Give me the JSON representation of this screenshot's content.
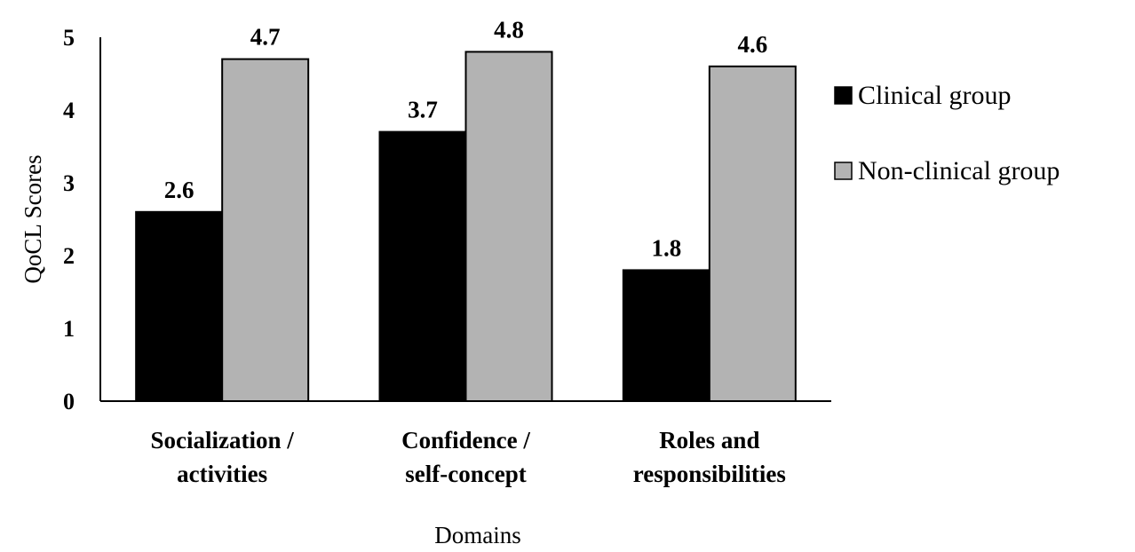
{
  "chart_data": {
    "type": "bar",
    "categories": [
      [
        "Socialization /",
        "activities"
      ],
      [
        "Confidence /",
        "self-concept"
      ],
      [
        "Roles and",
        "responsibilities"
      ]
    ],
    "series": [
      {
        "name": "Clinical group",
        "values": [
          2.6,
          3.7,
          1.8
        ],
        "labels": [
          "2.6",
          "3.7",
          "1.8"
        ],
        "color": "#000000"
      },
      {
        "name": "Non-clinical group",
        "values": [
          4.7,
          4.8,
          4.6
        ],
        "labels": [
          "4.7",
          "4.8",
          "4.6"
        ],
        "color": "#b3b3b3"
      }
    ],
    "yticks": [
      "0",
      "1",
      "2",
      "3",
      "4",
      "5"
    ],
    "ylim": [
      0,
      5
    ],
    "xlabel": "Domains",
    "ylabel": "QoCL Scores",
    "grid": false,
    "legend_position": "right"
  }
}
